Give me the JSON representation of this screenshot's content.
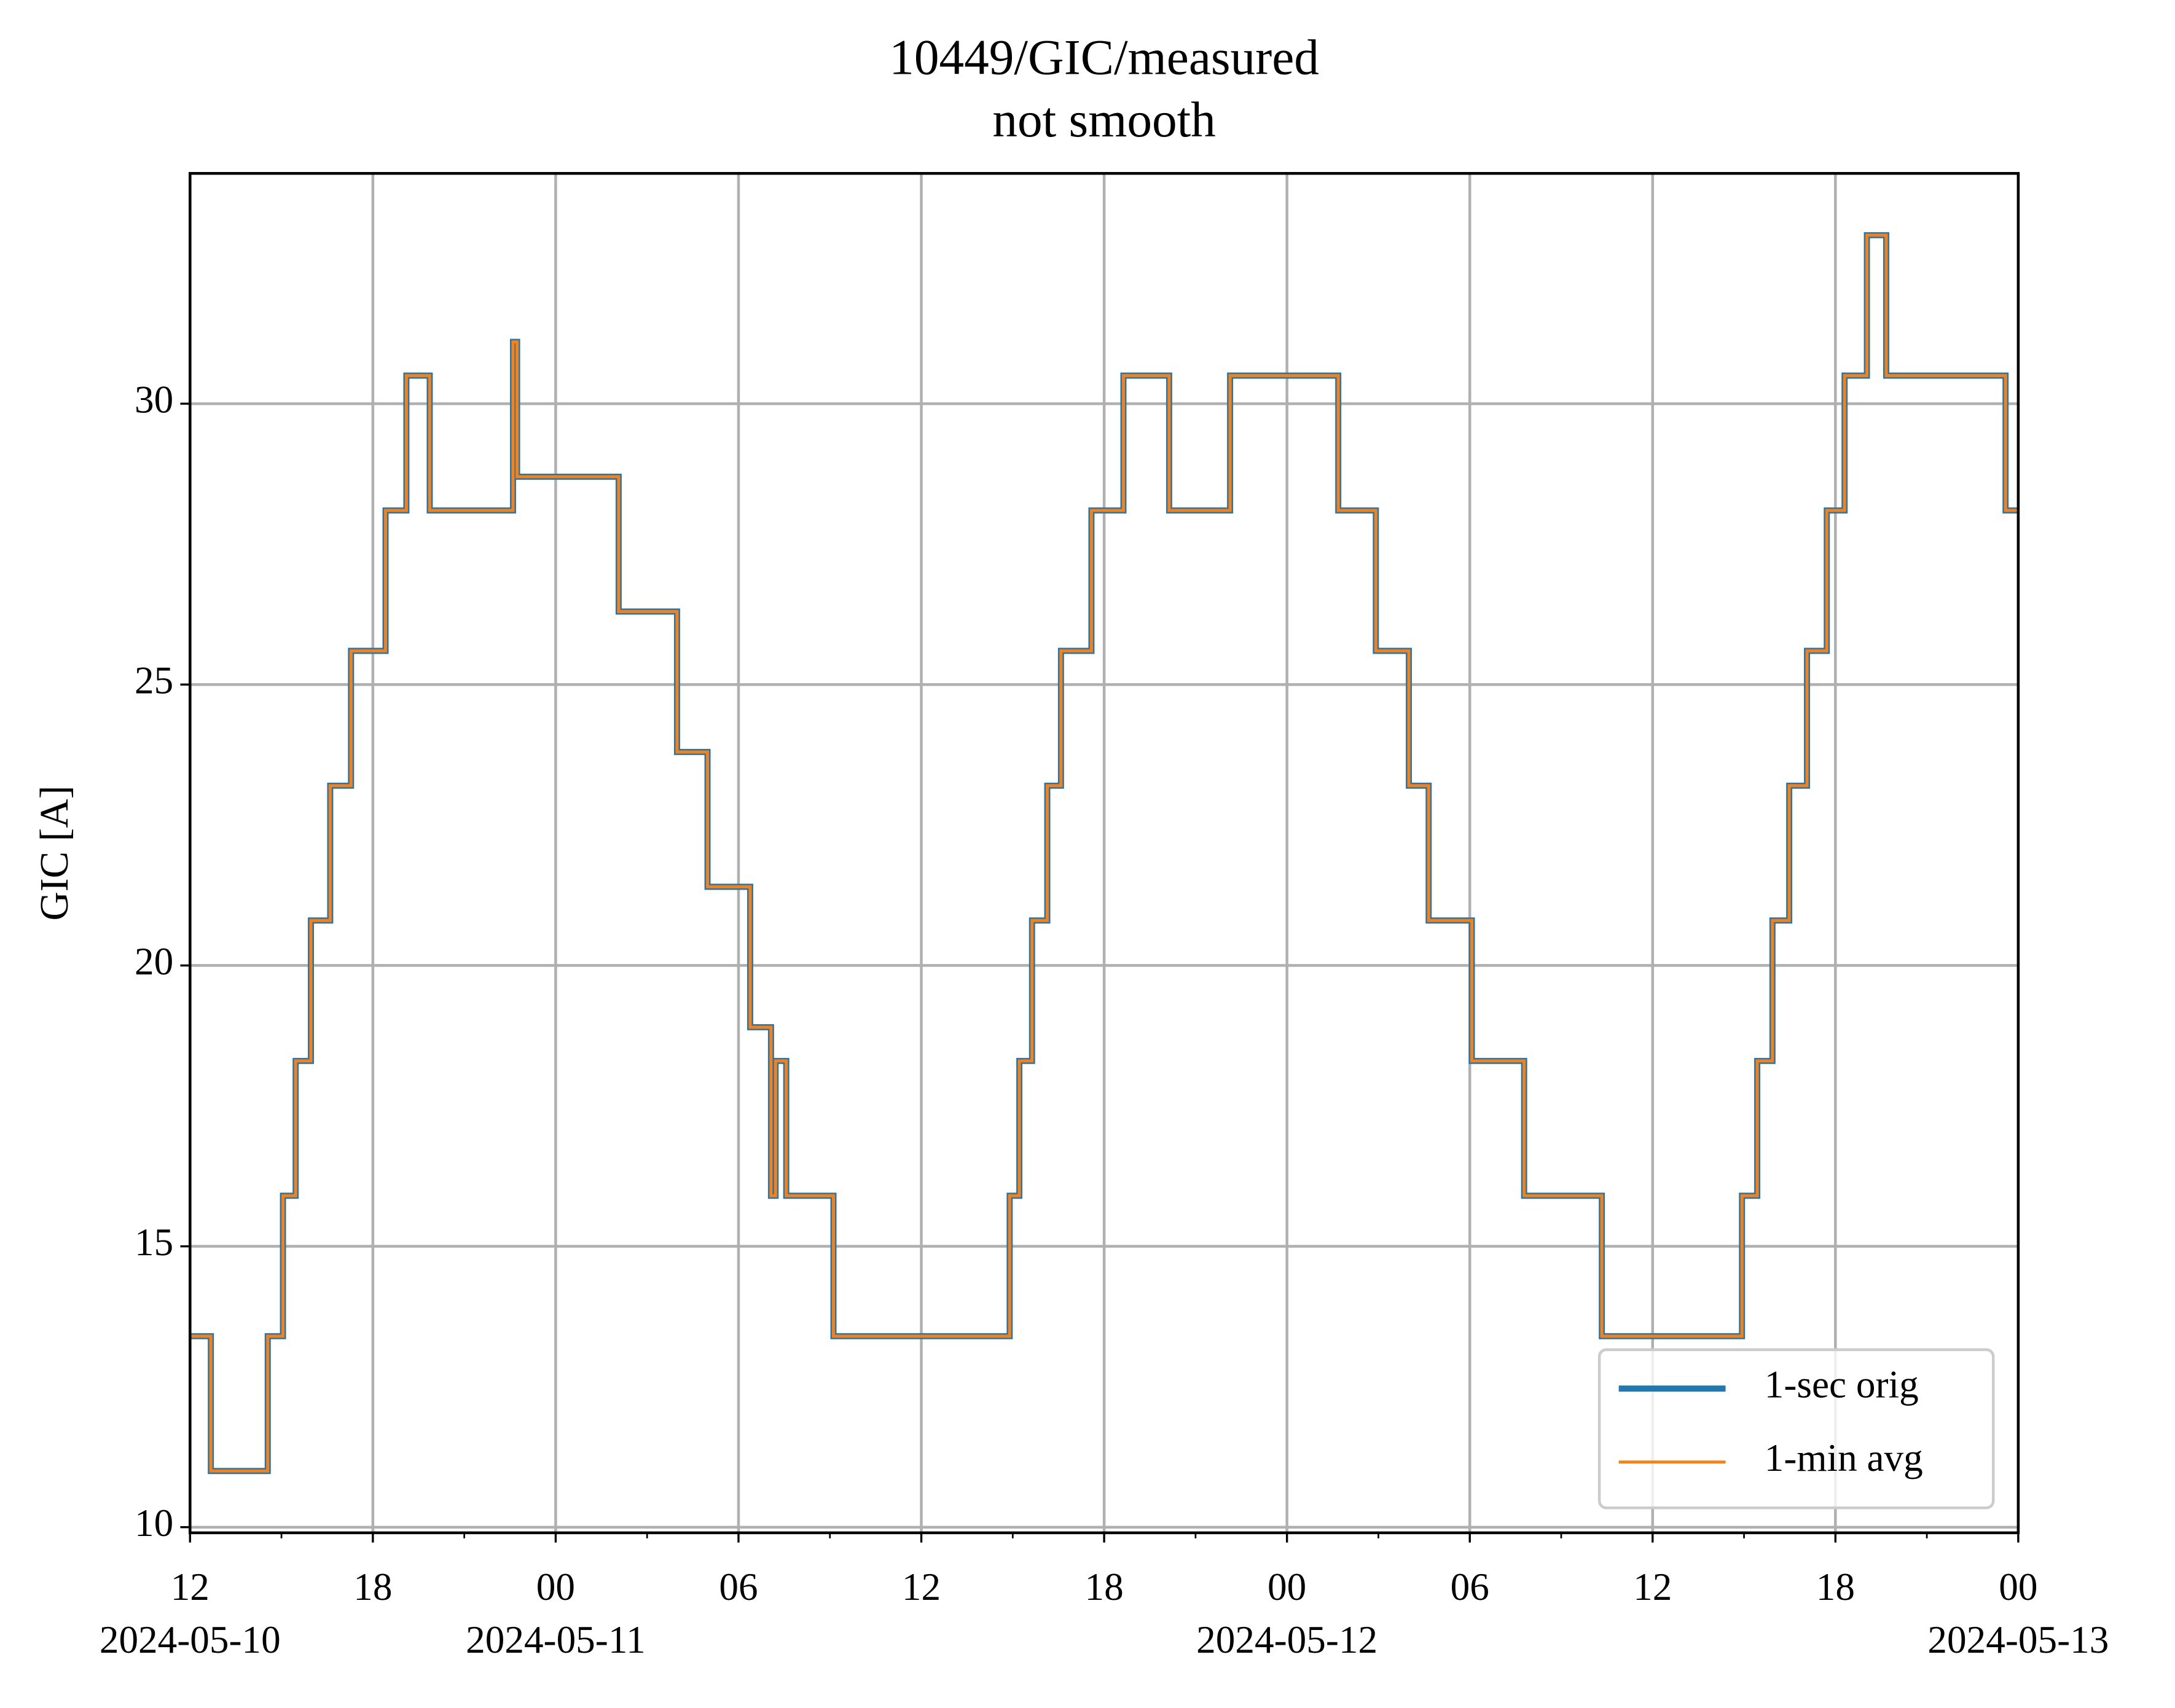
{
  "chart_data": {
    "type": "line",
    "step": "post",
    "title": "10449/GIC/measured",
    "subtitle": "not smooth",
    "y_label": "GIC [A]",
    "x": [
      "2024-05-10T12:00",
      "2024-05-10T12:41",
      "2024-05-10T14:33",
      "2024-05-10T15:03",
      "2024-05-10T15:28",
      "2024-05-10T15:58",
      "2024-05-10T16:36",
      "2024-05-10T17:17",
      "2024-05-10T18:25",
      "2024-05-10T19:06",
      "2024-05-10T19:52",
      "2024-05-10T22:36",
      "2024-05-10T22:44",
      "2024-05-11T02:04",
      "2024-05-11T03:59",
      "2024-05-11T04:59",
      "2024-05-11T06:23",
      "2024-05-11T07:04",
      "2024-05-11T07:13",
      "2024-05-11T07:34",
      "2024-05-11T09:07",
      "2024-05-11T14:54",
      "2024-05-11T15:13",
      "2024-05-11T15:38",
      "2024-05-11T16:08",
      "2024-05-11T16:35",
      "2024-05-11T17:35",
      "2024-05-11T18:38",
      "2024-05-11T20:08",
      "2024-05-11T22:08",
      "2024-05-12T01:41",
      "2024-05-12T02:55",
      "2024-05-12T04:00",
      "2024-05-12T04:39",
      "2024-05-12T06:04",
      "2024-05-12T07:47",
      "2024-05-12T10:20",
      "2024-05-12T14:56",
      "2024-05-12T15:26",
      "2024-05-12T15:56",
      "2024-05-12T16:29",
      "2024-05-12T17:04",
      "2024-05-12T17:43",
      "2024-05-12T18:18",
      "2024-05-12T19:02",
      "2024-05-12T19:40",
      "2024-05-12T23:35",
      "2024-05-13T00:00"
    ],
    "series": [
      {
        "name": "1-sec orig",
        "color": "#1f77b4",
        "width": 2,
        "values": [
          13.4,
          11.0,
          13.4,
          15.9,
          18.3,
          20.8,
          23.2,
          25.6,
          28.1,
          30.5,
          28.1,
          31.1,
          28.7,
          26.3,
          23.8,
          21.4,
          18.9,
          15.9,
          18.3,
          15.9,
          13.4,
          15.9,
          18.3,
          20.8,
          23.2,
          25.6,
          28.1,
          30.5,
          28.1,
          30.5,
          28.1,
          25.6,
          23.2,
          20.8,
          18.3,
          15.9,
          13.4,
          15.9,
          18.3,
          20.8,
          23.2,
          25.6,
          28.1,
          30.5,
          33.0,
          30.5,
          28.1,
          28.1
        ]
      },
      {
        "name": "1-min avg",
        "color": "#ff7f0e",
        "width": 1,
        "values": [
          13.4,
          11.0,
          13.4,
          15.9,
          18.3,
          20.8,
          23.2,
          25.6,
          28.1,
          30.5,
          28.1,
          31.1,
          28.7,
          26.3,
          23.8,
          21.4,
          18.9,
          15.9,
          18.3,
          15.9,
          13.4,
          15.9,
          18.3,
          20.8,
          23.2,
          25.6,
          28.1,
          30.5,
          28.1,
          30.5,
          28.1,
          25.6,
          23.2,
          20.8,
          18.3,
          15.9,
          13.4,
          15.9,
          18.3,
          20.8,
          23.2,
          25.6,
          28.1,
          30.5,
          33.0,
          30.5,
          28.1,
          28.1
        ]
      }
    ],
    "xlim": [
      "2024-05-10T12:00",
      "2024-05-13T00:00"
    ],
    "xticks": [
      {
        "value": "2024-05-10T12:00",
        "label": "12"
      },
      {
        "value": "2024-05-10T18:00",
        "label": "18"
      },
      {
        "value": "2024-05-11T00:00",
        "label": "00"
      },
      {
        "value": "2024-05-11T06:00",
        "label": "06"
      },
      {
        "value": "2024-05-11T12:00",
        "label": "12"
      },
      {
        "value": "2024-05-11T18:00",
        "label": "18"
      },
      {
        "value": "2024-05-12T00:00",
        "label": "00"
      },
      {
        "value": "2024-05-12T06:00",
        "label": "06"
      },
      {
        "value": "2024-05-12T12:00",
        "label": "12"
      },
      {
        "value": "2024-05-12T18:00",
        "label": "18"
      },
      {
        "value": "2024-05-13T00:00",
        "label": "00"
      }
    ],
    "xtick_dates": [
      {
        "value": "2024-05-10T12:00",
        "label": "2024-05-10"
      },
      {
        "value": "2024-05-11T00:00",
        "label": "2024-05-11"
      },
      {
        "value": "2024-05-12T00:00",
        "label": "2024-05-12"
      },
      {
        "value": "2024-05-13T00:00",
        "label": "2024-05-13"
      }
    ],
    "xminorticks": [
      "2024-05-10T15:00",
      "2024-05-10T21:00",
      "2024-05-11T03:00",
      "2024-05-11T09:00",
      "2024-05-11T15:00",
      "2024-05-11T21:00",
      "2024-05-12T03:00",
      "2024-05-12T09:00",
      "2024-05-12T15:00",
      "2024-05-12T21:00"
    ],
    "ylim": [
      9.9,
      34.1
    ],
    "yticks": [
      10,
      15,
      20,
      25,
      30
    ],
    "grid": true,
    "legend": "lower right"
  }
}
